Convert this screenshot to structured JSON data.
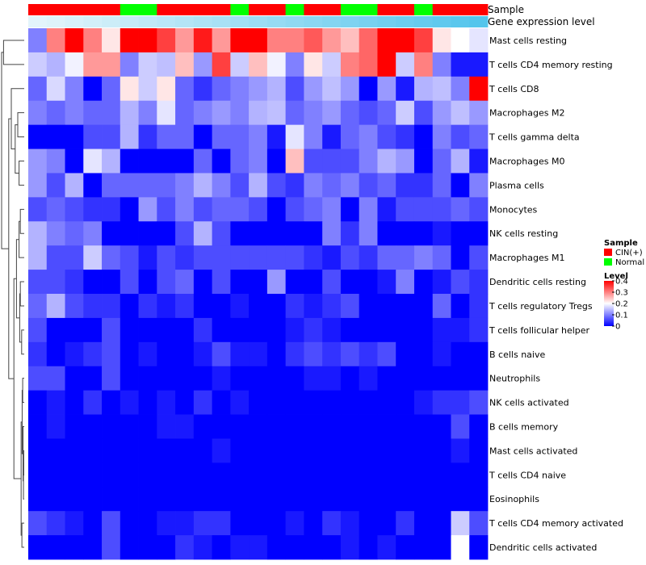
{
  "chart_data": {
    "type": "heatmap",
    "title": "",
    "annotation_rows": [
      {
        "label": "Sample",
        "kind": "categorical"
      },
      {
        "label": "Gene expression level",
        "kind": "continuous"
      }
    ],
    "sample_groups": [
      {
        "name": "CIN(+)",
        "color": "#ff0000"
      },
      {
        "name": "Normal",
        "color": "#00ff00"
      }
    ],
    "sample_annotation": [
      "CIN(+)",
      "CIN(+)",
      "CIN(+)",
      "CIN(+)",
      "CIN(+)",
      "Normal",
      "Normal",
      "CIN(+)",
      "CIN(+)",
      "CIN(+)",
      "CIN(+)",
      "Normal",
      "CIN(+)",
      "CIN(+)",
      "Normal",
      "CIN(+)",
      "CIN(+)",
      "Normal",
      "Normal",
      "CIN(+)",
      "CIN(+)",
      "Normal",
      "CIN(+)",
      "CIN(+)",
      "CIN(+)"
    ],
    "gene_expression_level": [
      0.02,
      0.05,
      0.09,
      0.13,
      0.17,
      0.21,
      0.25,
      0.29,
      0.33,
      0.37,
      0.41,
      0.45,
      0.49,
      0.53,
      0.57,
      0.61,
      0.65,
      0.69,
      0.73,
      0.77,
      0.81,
      0.85,
      0.89,
      0.93,
      0.97
    ],
    "rows": [
      "Mast cells resting",
      "T cells CD4 memory resting",
      "T cells CD8",
      "Macrophages M2",
      "T cells gamma delta",
      "Macrophages M0",
      "Plasma cells",
      "Monocytes",
      "NK cells resting",
      "Macrophages M1",
      "Dendritic cells resting",
      "T cells regulatory  Tregs",
      "T cells follicular helper",
      "B cells naive",
      "Neutrophils",
      "NK cells activated",
      "B cells memory",
      "Mast cells activated",
      "T cells CD4 naive",
      "Eosinophils",
      "T cells CD4 memory activated",
      "Dendritic cells activated"
    ],
    "values": [
      [
        0.1,
        0.3,
        0.4,
        0.3,
        0.22,
        0.4,
        0.4,
        0.35,
        0.28,
        0.38,
        0.28,
        0.4,
        0.4,
        0.3,
        0.3,
        0.33,
        0.28,
        0.25,
        0.32,
        0.4,
        0.4,
        0.35,
        0.22,
        0.2,
        0.18
      ],
      [
        0.16,
        0.14,
        0.19,
        0.28,
        0.28,
        0.1,
        0.16,
        0.15,
        0.25,
        0.12,
        0.35,
        0.16,
        0.25,
        0.19,
        0.1,
        0.22,
        0.16,
        0.3,
        0.32,
        0.4,
        0.16,
        0.3,
        0.1,
        0.02,
        0.02
      ],
      [
        0.08,
        0.17,
        0.1,
        0.0,
        0.08,
        0.22,
        0.16,
        0.22,
        0.08,
        0.04,
        0.08,
        0.1,
        0.12,
        0.14,
        0.06,
        0.12,
        0.15,
        0.12,
        0.0,
        0.12,
        0.02,
        0.14,
        0.15,
        0.1,
        0.4
      ],
      [
        0.1,
        0.08,
        0.1,
        0.08,
        0.08,
        0.14,
        0.1,
        0.18,
        0.08,
        0.1,
        0.12,
        0.1,
        0.14,
        0.15,
        0.08,
        0.1,
        0.12,
        0.08,
        0.06,
        0.08,
        0.16,
        0.06,
        0.12,
        0.15,
        0.12
      ],
      [
        0.0,
        0.0,
        0.0,
        0.06,
        0.06,
        0.14,
        0.04,
        0.08,
        0.08,
        0.0,
        0.08,
        0.08,
        0.1,
        0.02,
        0.18,
        0.1,
        0.02,
        0.08,
        0.1,
        0.06,
        0.04,
        0.0,
        0.1,
        0.06,
        0.08
      ],
      [
        0.12,
        0.1,
        0.0,
        0.18,
        0.14,
        0.0,
        0.0,
        0.0,
        0.0,
        0.08,
        0.0,
        0.08,
        0.1,
        0.0,
        0.25,
        0.06,
        0.06,
        0.06,
        0.1,
        0.14,
        0.12,
        0.0,
        0.08,
        0.14,
        0.02
      ],
      [
        0.12,
        0.06,
        0.14,
        0.0,
        0.08,
        0.08,
        0.08,
        0.08,
        0.1,
        0.14,
        0.1,
        0.06,
        0.14,
        0.06,
        0.04,
        0.1,
        0.08,
        0.1,
        0.06,
        0.08,
        0.04,
        0.04,
        0.08,
        0.0,
        0.1
      ],
      [
        0.06,
        0.08,
        0.06,
        0.04,
        0.04,
        0.0,
        0.12,
        0.06,
        0.1,
        0.06,
        0.08,
        0.08,
        0.06,
        0.0,
        0.06,
        0.08,
        0.1,
        0.0,
        0.1,
        0.02,
        0.06,
        0.06,
        0.06,
        0.08,
        0.06
      ],
      [
        0.14,
        0.1,
        0.08,
        0.1,
        0.0,
        0.0,
        0.0,
        0.0,
        0.06,
        0.14,
        0.06,
        0.0,
        0.0,
        0.0,
        0.0,
        0.0,
        0.1,
        0.04,
        0.1,
        0.0,
        0.0,
        0.0,
        0.02,
        0.0,
        0.0
      ],
      [
        0.14,
        0.06,
        0.06,
        0.16,
        0.08,
        0.06,
        0.02,
        0.06,
        0.04,
        0.06,
        0.06,
        0.06,
        0.06,
        0.06,
        0.06,
        0.04,
        0.02,
        0.06,
        0.04,
        0.08,
        0.08,
        0.1,
        0.08,
        0.0,
        0.06
      ],
      [
        0.06,
        0.06,
        0.04,
        0.0,
        0.0,
        0.06,
        0.0,
        0.06,
        0.08,
        0.0,
        0.06,
        0.0,
        0.0,
        0.12,
        0.0,
        0.0,
        0.06,
        0.0,
        0.0,
        0.02,
        0.1,
        0.0,
        0.02,
        0.06,
        0.04
      ],
      [
        0.08,
        0.14,
        0.06,
        0.04,
        0.04,
        0.0,
        0.04,
        0.02,
        0.04,
        0.0,
        0.0,
        0.02,
        0.0,
        0.0,
        0.04,
        0.02,
        0.04,
        0.06,
        0.0,
        0.0,
        0.0,
        0.0,
        0.08,
        0.0,
        0.04
      ],
      [
        0.06,
        0.0,
        0.0,
        0.0,
        0.06,
        0.0,
        0.0,
        0.0,
        0.0,
        0.04,
        0.0,
        0.0,
        0.0,
        0.0,
        0.02,
        0.04,
        0.02,
        0.0,
        0.0,
        0.0,
        0.0,
        0.0,
        0.02,
        0.02,
        0.04
      ],
      [
        0.04,
        0.0,
        0.02,
        0.04,
        0.06,
        0.0,
        0.02,
        0.0,
        0.0,
        0.02,
        0.06,
        0.02,
        0.02,
        0.0,
        0.04,
        0.06,
        0.04,
        0.06,
        0.04,
        0.06,
        0.0,
        0.0,
        0.02,
        0.0,
        0.0
      ],
      [
        0.06,
        0.06,
        0.0,
        0.0,
        0.06,
        0.0,
        0.0,
        0.0,
        0.0,
        0.0,
        0.02,
        0.0,
        0.0,
        0.0,
        0.0,
        0.02,
        0.02,
        0.0,
        0.02,
        0.0,
        0.0,
        0.0,
        0.0,
        0.0,
        0.0
      ],
      [
        0.0,
        0.02,
        0.0,
        0.04,
        0.0,
        0.02,
        0.0,
        0.02,
        0.0,
        0.04,
        0.0,
        0.02,
        0.0,
        0.0,
        0.0,
        0.0,
        0.0,
        0.0,
        0.0,
        0.0,
        0.0,
        0.02,
        0.04,
        0.04,
        0.06
      ],
      [
        0.0,
        0.02,
        0.0,
        0.0,
        0.0,
        0.0,
        0.0,
        0.02,
        0.02,
        0.0,
        0.0,
        0.0,
        0.0,
        0.0,
        0.0,
        0.0,
        0.0,
        0.0,
        0.0,
        0.0,
        0.0,
        0.0,
        0.0,
        0.06,
        0.0
      ],
      [
        0.0,
        0.0,
        0.0,
        0.0,
        0.0,
        0.0,
        0.0,
        0.0,
        0.0,
        0.0,
        0.02,
        0.0,
        0.0,
        0.0,
        0.0,
        0.0,
        0.0,
        0.0,
        0.0,
        0.0,
        0.0,
        0.0,
        0.0,
        0.02,
        0.0
      ],
      [
        0.0,
        0.0,
        0.0,
        0.0,
        0.0,
        0.0,
        0.0,
        0.0,
        0.0,
        0.0,
        0.0,
        0.0,
        0.0,
        0.0,
        0.0,
        0.0,
        0.0,
        0.0,
        0.0,
        0.0,
        0.0,
        0.0,
        0.0,
        0.0,
        0.0
      ],
      [
        0.0,
        0.0,
        0.0,
        0.0,
        0.0,
        0.0,
        0.0,
        0.0,
        0.0,
        0.0,
        0.0,
        0.0,
        0.0,
        0.0,
        0.0,
        0.0,
        0.0,
        0.0,
        0.0,
        0.0,
        0.0,
        0.0,
        0.0,
        0.0,
        0.0
      ],
      [
        0.06,
        0.04,
        0.02,
        0.0,
        0.06,
        0.0,
        0.0,
        0.02,
        0.02,
        0.04,
        0.04,
        0.0,
        0.0,
        0.0,
        0.02,
        0.0,
        0.04,
        0.02,
        0.0,
        0.0,
        0.04,
        0.0,
        0.0,
        0.16,
        0.06
      ],
      [
        0.0,
        0.0,
        0.0,
        0.0,
        0.06,
        0.0,
        0.0,
        0.0,
        0.04,
        0.02,
        0.0,
        0.02,
        0.02,
        0.0,
        0.0,
        0.0,
        0.0,
        0.02,
        0.0,
        0.02,
        0.0,
        0.0,
        0.0,
        0.2,
        0.0
      ]
    ],
    "legend": {
      "sample_title": "Sample",
      "level_title": "Level",
      "level_ticks": [
        "0.4",
        "0.3",
        "0.2",
        "0.1",
        "0"
      ],
      "level_tick_values": [
        0.4,
        0.3,
        0.2,
        0.1,
        0
      ],
      "color_low": "#0000ff",
      "color_mid": "#ffffff",
      "color_high": "#ff0000",
      "placement": "right"
    },
    "dendrogram": "rows"
  }
}
